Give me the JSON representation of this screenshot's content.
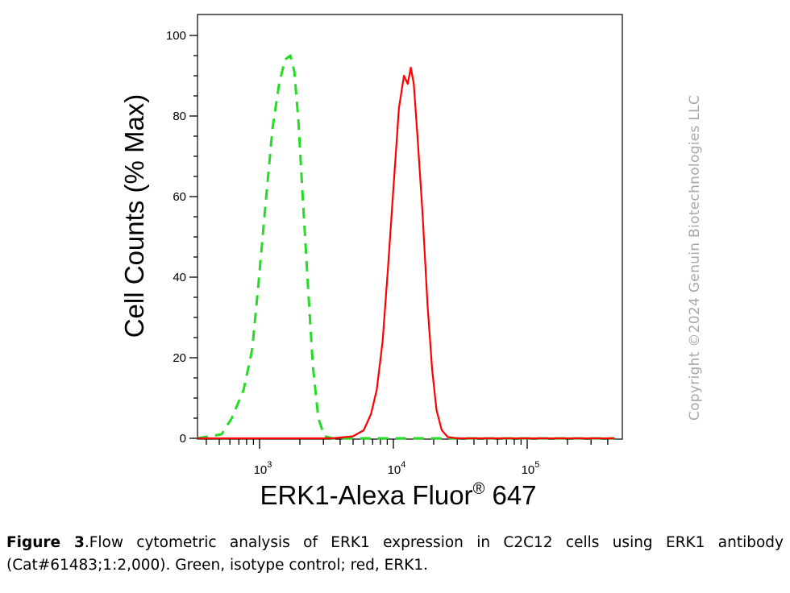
{
  "chart_data": {
    "type": "line",
    "xlabel": "ERK1-Alexa Fluor",
    "xlabel_sup": "®",
    "xlabel_suffix": " 647",
    "ylabel": "Cell Counts (% Max)",
    "x_scale": "log",
    "xlim": [
      300,
      450000
    ],
    "ylim": [
      0,
      105
    ],
    "yticks": [
      0,
      20,
      40,
      60,
      80,
      100
    ],
    "xtick_labels": [
      {
        "base": "10",
        "exp": "3",
        "value": 1000
      },
      {
        "base": "10",
        "exp": "4",
        "value": 10000
      },
      {
        "base": "10",
        "exp": "5",
        "value": 100000
      }
    ],
    "grid": false,
    "series": [
      {
        "color": "#22dd22",
        "style": "dashed",
        "points": [
          [
            300,
            0
          ],
          [
            330,
            0
          ],
          [
            420,
            0.5
          ],
          [
            520,
            1
          ],
          [
            620,
            5
          ],
          [
            760,
            12
          ],
          [
            880,
            22
          ],
          [
            980,
            38
          ],
          [
            1100,
            57
          ],
          [
            1250,
            77
          ],
          [
            1400,
            88
          ],
          [
            1550,
            94
          ],
          [
            1700,
            95
          ],
          [
            1820,
            91
          ],
          [
            1950,
            79
          ],
          [
            2100,
            60
          ],
          [
            2300,
            38
          ],
          [
            2500,
            18
          ],
          [
            2750,
            5
          ],
          [
            3050,
            0.5
          ],
          [
            3500,
            0
          ],
          [
            450000,
            0
          ]
        ]
      },
      {
        "color": "#ff0000",
        "style": "solid",
        "points": [
          [
            300,
            0
          ],
          [
            3500,
            0
          ],
          [
            5000,
            0.5
          ],
          [
            6000,
            2
          ],
          [
            6800,
            6
          ],
          [
            7500,
            12
          ],
          [
            8300,
            24
          ],
          [
            9100,
            42
          ],
          [
            10000,
            62
          ],
          [
            11000,
            82
          ],
          [
            12000,
            90
          ],
          [
            12800,
            88
          ],
          [
            13500,
            92
          ],
          [
            14200,
            88
          ],
          [
            15200,
            74
          ],
          [
            16500,
            56
          ],
          [
            18000,
            33
          ],
          [
            19500,
            17
          ],
          [
            21000,
            7
          ],
          [
            23000,
            2
          ],
          [
            25500,
            0.3
          ],
          [
            30000,
            0
          ],
          [
            450000,
            0
          ]
        ]
      }
    ]
  },
  "caption": {
    "label": "Figure 3",
    "text": ".Flow cytometric analysis of ERK1 expression in C2C12 cells using ERK1 antibody (Cat#61483;1:2,000). Green, isotype control; red, ERK1."
  },
  "watermark": "Copyright ©2024 Genuin Biotechnologies LLC"
}
